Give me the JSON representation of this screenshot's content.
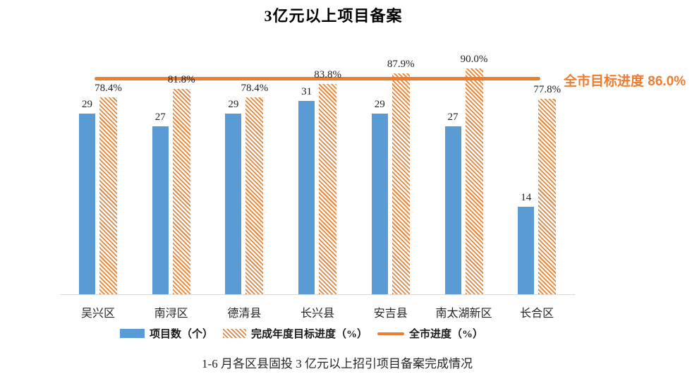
{
  "title": "3亿元以上项目备案",
  "annotation": {
    "label": "全市目标进度 86.0%"
  },
  "caption": "1-6 月各区县固投 3 亿元以上招引项目备案完成情况",
  "colors": {
    "bar_blue": "#5B9BD5",
    "orange": "#ED7D31",
    "hatch_stripe": "#E6863C",
    "axis_line": "#D9D9D9"
  },
  "chart_data": {
    "type": "bar",
    "title": "3亿元以上项目备案",
    "categories": [
      "吴兴区",
      "南浔区",
      "德清县",
      "长兴县",
      "安吉县",
      "南太湖新区",
      "长合区"
    ],
    "series": [
      {
        "name": "项目数（个）",
        "type": "bar",
        "color": "#5B9BD5",
        "values": [
          29,
          27,
          29,
          31,
          29,
          27,
          14
        ]
      },
      {
        "name": "完成年度目标进度（%）",
        "type": "bar",
        "style": "hatched-orange",
        "unit": "%",
        "values": [
          78.4,
          81.8,
          78.4,
          83.8,
          87.9,
          90.0,
          77.8
        ]
      },
      {
        "name": "全市进度（%）",
        "type": "line",
        "color": "#ED7D31",
        "value": 86.0
      }
    ],
    "count_axis_max": 38.5,
    "pct_axis_max": 95.6,
    "grid": false,
    "legend_position": "bottom",
    "annotation": "全市目标进度 86.0%",
    "caption": "1-6 月各区县固投 3 亿元以上招引项目备案完成情况"
  }
}
